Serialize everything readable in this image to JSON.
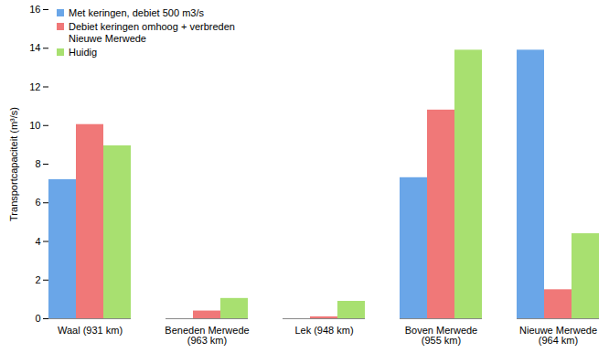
{
  "chart_data": {
    "type": "bar",
    "y_label": "Transportcapaciteit (m³/s)",
    "categories": [
      "Waal (931 km)",
      "Beneden Merwede\n(963 km)",
      "Lek (948 km)",
      "Boven Merwede\n(955 km)",
      "Nieuwe Merwede\n(964 km)"
    ],
    "series": [
      {
        "name": "Met keringen, debiet 500 m3/s",
        "color": "#6aa6e8",
        "values": [
          7.2,
          0,
          0,
          7.3,
          13.9
        ]
      },
      {
        "name": "Debiet keringen omhoog + verbreden Nieuwe Merwede",
        "color": "#f07878",
        "values": [
          10.05,
          0.4,
          0.1,
          10.8,
          1.5
        ]
      },
      {
        "name": "Huidig",
        "color": "#a8e070",
        "values": [
          8.95,
          1.05,
          0.9,
          13.9,
          4.4
        ]
      }
    ],
    "ylim": [
      0,
      16
    ],
    "yticks": [
      0,
      2,
      4,
      6,
      8,
      10,
      12,
      14,
      16
    ],
    "grid": false,
    "legend": "top-left"
  }
}
